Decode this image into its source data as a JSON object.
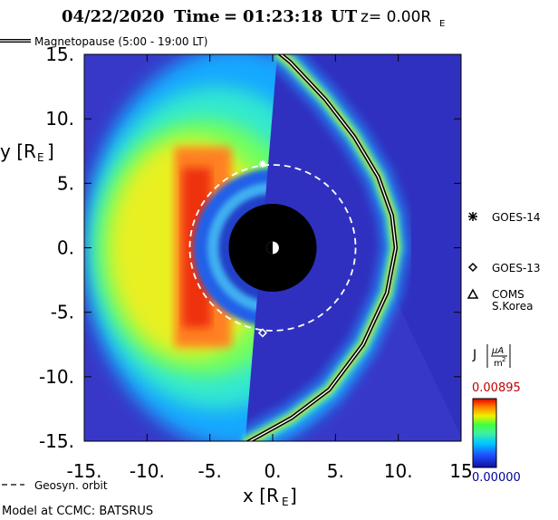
{
  "header": {
    "date": "04/22/2020",
    "time_label": "Time",
    "time_value": "01:23:18",
    "time_unit": "UT",
    "z_label": "z= 0.00R",
    "z_sub": "E"
  },
  "chart_data": {
    "type": "heatmap",
    "xlabel": "x [R",
    "xlabel_sub": "E",
    "xlabel_close": "]",
    "ylabel": "y [R",
    "ylabel_sub": "E",
    "ylabel_close": "]",
    "xlim": [
      -15,
      15
    ],
    "ylim": [
      -15,
      15
    ],
    "x_ticks": [
      -15,
      -10,
      -5,
      0,
      5,
      10,
      15
    ],
    "x_tick_labels": [
      "-15.",
      "-10.",
      "-5.",
      "0.",
      "5.",
      "10.",
      "15"
    ],
    "y_ticks": [
      15,
      10,
      5,
      0,
      -5,
      -10,
      -15
    ],
    "y_tick_labels": [
      "15.",
      "10.",
      "5.",
      "0.",
      "-5.",
      "-10.",
      "-15."
    ],
    "colorbar": {
      "label": "J",
      "unit_num": "μA",
      "unit_den": "m",
      "unit_den_sup": "2",
      "max_label": "0.00895",
      "min_label": "0.00000",
      "max": 0.00895,
      "min": 0
    },
    "earth_radius": 3.5,
    "earth_marker_radius": 0.5,
    "geosynchronous_orbit_radius": 6.6,
    "magnetopause": {
      "legend": "Magnetopause (5:00 - 19:00 LT)",
      "subsolar_x": 9.8,
      "points": [
        [
          -2.2,
          -15.2
        ],
        [
          1.5,
          -13.2
        ],
        [
          4.5,
          -11
        ],
        [
          7.2,
          -7.5
        ],
        [
          9.1,
          -3.5
        ],
        [
          9.8,
          0
        ],
        [
          9.5,
          2.5
        ],
        [
          8.4,
          5.5
        ],
        [
          6.5,
          8.6
        ],
        [
          4.2,
          11.5
        ],
        [
          1.4,
          14.4
        ],
        [
          0.4,
          15.2
        ]
      ]
    },
    "satellites": [
      {
        "name": "GOES-14",
        "symbol": "asterisk",
        "x": -0.8,
        "y": 6.5
      },
      {
        "name": "GOES-13",
        "symbol": "diamond",
        "x": -0.8,
        "y": -6.6
      },
      {
        "name": "COMS",
        "name2": "S.Korea",
        "symbol": "triangle"
      }
    ],
    "orbit_legend": "Geosyn. orbit",
    "footer": "Model at CCMC: BATSRUS"
  }
}
